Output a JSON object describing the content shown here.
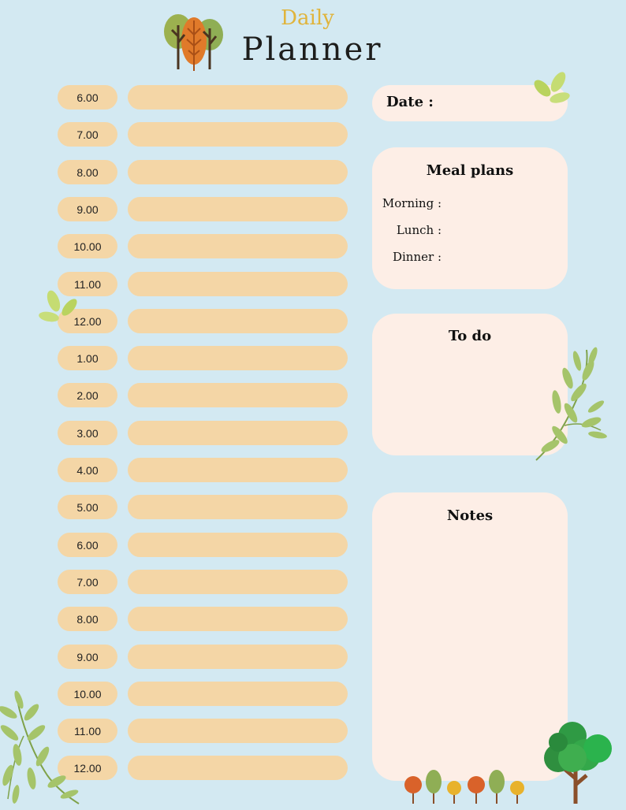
{
  "header": {
    "small_title": "Daily",
    "big_title": "Planner"
  },
  "schedule": {
    "times": [
      "6.00",
      "7.00",
      "8.00",
      "9.00",
      "10.00",
      "11.00",
      "12.00",
      "1.00",
      "2.00",
      "3.00",
      "4.00",
      "5.00",
      "6.00",
      "7.00",
      "8.00",
      "9.00",
      "10.00",
      "11.00",
      "12.00"
    ]
  },
  "date_card": {
    "label": "Date :"
  },
  "meal_card": {
    "title": "Meal plans",
    "morning": "Morning :",
    "lunch": "Lunch :",
    "dinner": "Dinner :"
  },
  "todo_card": {
    "title": "To do"
  },
  "notes_card": {
    "title": "Notes"
  },
  "colors": {
    "background": "#d3e9f2",
    "pill": "#f4d6a6",
    "card": "#fdeee6",
    "accent": "#e0b43c"
  },
  "decorations": [
    "tree-cluster-icon",
    "leaf-sprig-icon",
    "olive-branch-icon",
    "green-tree-icon",
    "small-trees-row-icon"
  ]
}
